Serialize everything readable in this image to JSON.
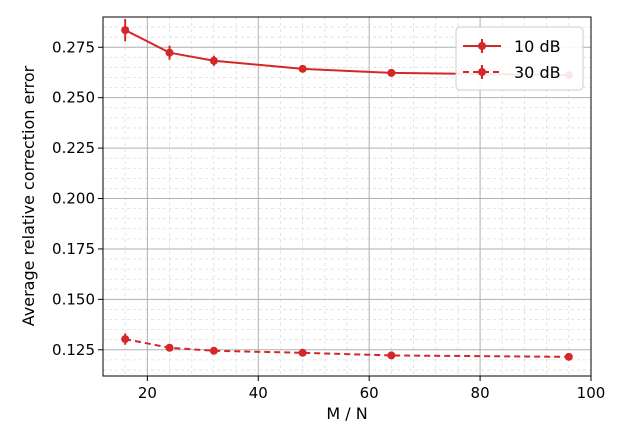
{
  "chart_data": {
    "type": "line",
    "title": "",
    "xlabel": "M / N",
    "ylabel": "Average relative correction error",
    "xlim": [
      12,
      100
    ],
    "ylim": [
      0.112,
      0.29
    ],
    "xticks": [
      20,
      40,
      60,
      80,
      100
    ],
    "yticks": [
      0.125,
      0.15,
      0.175,
      0.2,
      0.225,
      0.25,
      0.275
    ],
    "ytick_labels": [
      "0.125",
      "0.150",
      "0.175",
      "0.200",
      "0.225",
      "0.250",
      "0.275"
    ],
    "grid": true,
    "minor_grid": true,
    "legend_position": "top-right",
    "series_color": "#d62728",
    "series": [
      {
        "name": "10 dB",
        "line_style": "solid",
        "x": [
          16,
          24,
          32,
          48,
          64,
          96
        ],
        "y": [
          0.2835,
          0.2723,
          0.2683,
          0.2643,
          0.2623,
          0.2612
        ],
        "yerr": [
          0.0055,
          0.0035,
          0.0025,
          0.0018,
          0.0013,
          0.001
        ]
      },
      {
        "name": "30 dB",
        "line_style": "dashed",
        "x": [
          16,
          24,
          32,
          48,
          64,
          96
        ],
        "y": [
          0.1303,
          0.126,
          0.1245,
          0.1235,
          0.1222,
          0.1215
        ],
        "yerr": [
          0.0028,
          0.0015,
          0.0011,
          0.0009,
          0.0007,
          0.0006
        ]
      }
    ]
  }
}
